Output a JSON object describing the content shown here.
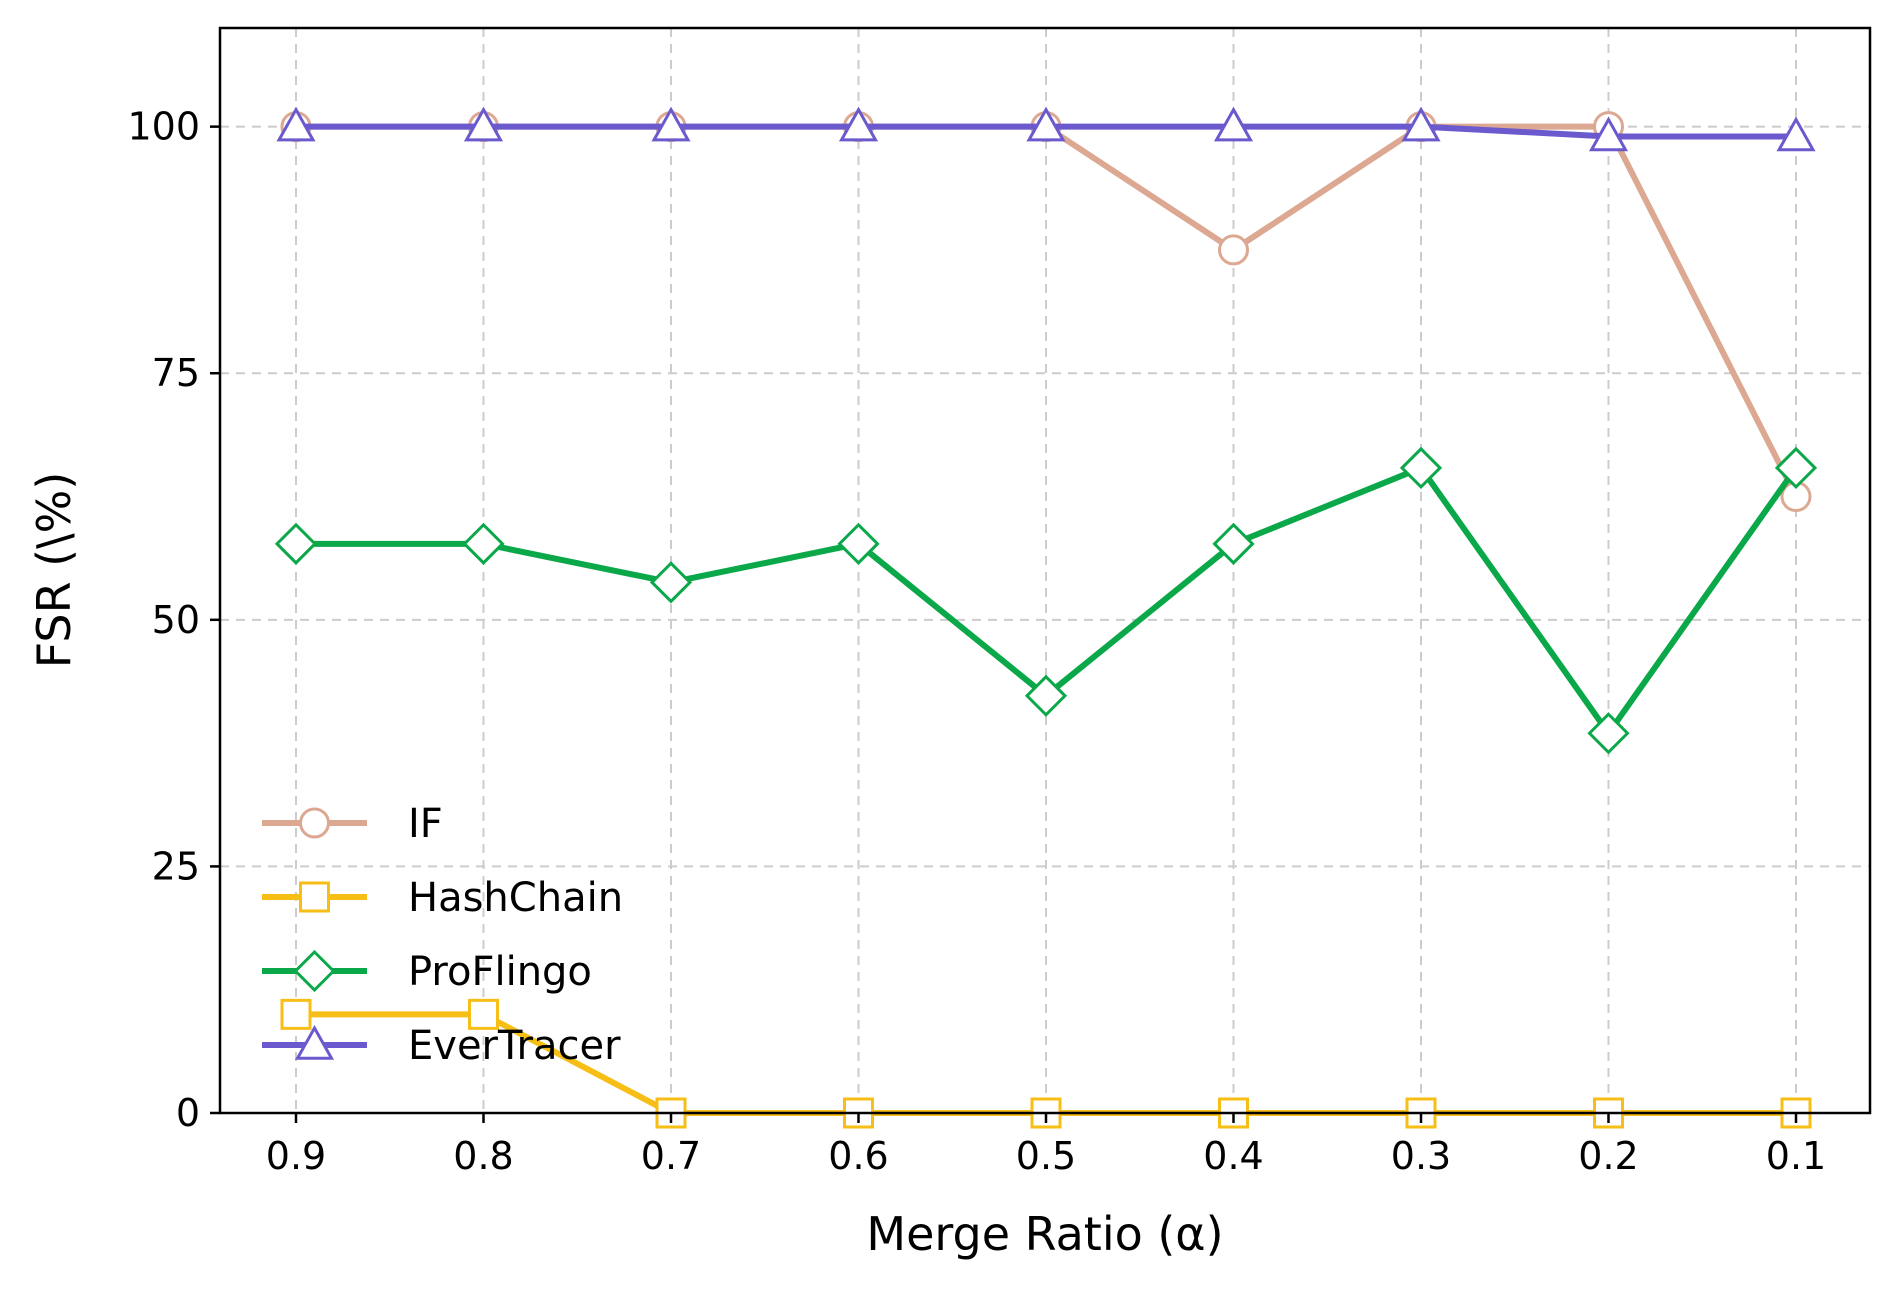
{
  "chart_data": {
    "type": "line",
    "title": "",
    "xlabel": "Merge Ratio (α)",
    "ylabel": "FSR (\\%)",
    "x": [
      0.9,
      0.8,
      0.7,
      0.6,
      0.5,
      0.4,
      0.3,
      0.2,
      0.1
    ],
    "x_tick_labels": [
      "0.9",
      "0.8",
      "0.7",
      "0.6",
      "0.5",
      "0.4",
      "0.3",
      "0.2",
      "0.1"
    ],
    "x_reversed": true,
    "ylim": [
      0,
      110
    ],
    "y_ticks": [
      0,
      25,
      50,
      75,
      100
    ],
    "y_tick_labels": [
      "0",
      "25",
      "50",
      "75",
      "100"
    ],
    "grid": true,
    "legend_position": "lower-left",
    "series": [
      {
        "name": "IF",
        "color": "#dca891",
        "marker": "circle",
        "values": [
          100,
          100,
          100,
          100,
          100,
          87.5,
          100,
          100,
          62.5
        ]
      },
      {
        "name": "HashChain",
        "color": "#f7be16",
        "marker": "square",
        "values": [
          10,
          10,
          0,
          0,
          0,
          0,
          0,
          0,
          0
        ]
      },
      {
        "name": "ProFlingo",
        "color": "#0ba84a",
        "marker": "diamond",
        "values": [
          57.7,
          57.7,
          53.8,
          57.7,
          42.3,
          57.7,
          65.4,
          38.5,
          65.4
        ]
      },
      {
        "name": "EverTracer",
        "color": "#6a5acd",
        "marker": "triangle",
        "values": [
          100,
          100,
          100,
          100,
          100,
          100,
          100,
          99,
          99
        ]
      }
    ]
  }
}
